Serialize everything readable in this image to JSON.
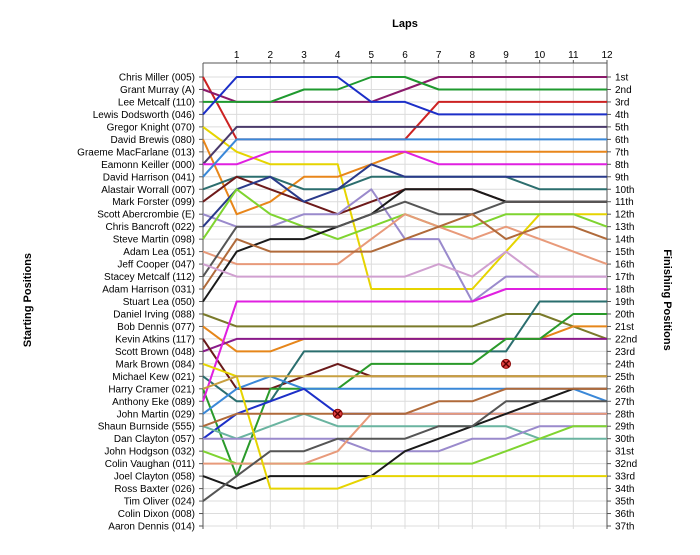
{
  "chart_data": {
    "type": "line",
    "title": "Laps",
    "ylabel_left": "Starting Positions",
    "ylabel_right": "Finishing Positions",
    "x": [
      0,
      1,
      2,
      3,
      4,
      5,
      6,
      7,
      8,
      9,
      10,
      11,
      12
    ],
    "x_tick_labels": [
      "1",
      "2",
      "3",
      "4",
      "5",
      "6",
      "7",
      "8",
      "9",
      "10",
      "11",
      "12"
    ],
    "drivers": [
      "Chris Miller (005)",
      "Grant Murray (A)",
      "Lee Metcalf (110)",
      "Lewis Dodsworth (046)",
      "Gregor Knight (070)",
      "David Brewis (080)",
      "Graeme MacFarlane (013)",
      "Eamonn Keiller (000)",
      "David Harrison (041)",
      "Alastair Worrall (007)",
      "Mark Forster (099)",
      "Scott Abercrombie (E)",
      "Chris Bancroft (022)",
      "Steve Martin (098)",
      "Adam Lea (051)",
      "Jeff Cooper (047)",
      "Stacey Metcalf (112)",
      "Adam Harrison (031)",
      "Stuart Lea (050)",
      "Daniel Irving (088)",
      "Bob Dennis (077)",
      "Kevin Atkins (117)",
      "Scott Brown (048)",
      "Mark Brown (084)",
      "Michael Kew (021)",
      "Harry Cramer (021)",
      "Anthony Eke (089)",
      "John Martin (029)",
      "Shaun Burnside (555)",
      "Dan Clayton (057)",
      "John Hodgson (032)",
      "Colin Vaughan (011)",
      "Joel Clayton (058)",
      "Ross Baxter (026)",
      "Tim Oliver (024)",
      "Colin Dixon (008)",
      "Aaron Dennis (014)"
    ],
    "finishing_labels": [
      "1st",
      "2nd",
      "3rd",
      "4th",
      "5th",
      "6th",
      "7th",
      "8th",
      "9th",
      "10th",
      "11th",
      "12th",
      "13th",
      "14th",
      "15th",
      "16th",
      "17th",
      "18th",
      "19th",
      "20th",
      "21st",
      "22nd",
      "23rd",
      "24th",
      "25th",
      "26th",
      "27th",
      "28th",
      "29th",
      "30th",
      "31st",
      "32nd",
      "33rd",
      "34th",
      "35th",
      "36th",
      "37th"
    ],
    "y_range": [
      1,
      37
    ],
    "grid": true,
    "series": [
      {
        "color": "#cc2222",
        "positions": [
          1,
          6,
          6,
          6,
          6,
          6,
          6,
          3,
          3,
          3,
          3,
          3,
          3
        ]
      },
      {
        "color": "#8a1a6a",
        "positions": [
          2,
          3,
          3,
          3,
          3,
          3,
          2,
          1,
          1,
          1,
          1,
          1,
          1
        ]
      },
      {
        "color": "#1f9a2f",
        "positions": [
          3,
          3,
          3,
          2,
          2,
          1,
          1,
          2,
          2,
          2,
          2,
          2,
          2
        ]
      },
      {
        "color": "#1c2fc8",
        "positions": [
          4,
          1,
          1,
          1,
          1,
          3,
          3,
          4,
          4,
          4,
          4,
          4,
          4
        ]
      },
      {
        "color": "#e6d400",
        "positions": [
          5,
          7,
          8,
          8,
          8,
          18,
          18,
          18,
          18,
          15,
          12,
          12,
          12
        ]
      },
      {
        "color": "#e8861a",
        "positions": [
          6,
          12,
          11,
          9,
          9,
          8,
          7,
          7,
          7,
          7,
          7,
          7,
          7
        ]
      },
      {
        "color": "#4a3a6a",
        "positions": [
          8,
          5,
          5,
          5,
          5,
          5,
          5,
          5,
          5,
          5,
          5,
          5,
          5
        ]
      },
      {
        "color": "#e020e0",
        "positions": [
          8,
          8,
          7,
          7,
          7,
          7,
          7,
          8,
          8,
          8,
          8,
          8,
          8
        ]
      },
      {
        "color": "#3a88d8",
        "positions": [
          9,
          6,
          6,
          6,
          6,
          6,
          6,
          6,
          6,
          6,
          6,
          6,
          6
        ]
      },
      {
        "color": "#2c6e6e",
        "positions": [
          10,
          9,
          9,
          10,
          10,
          9,
          9,
          9,
          9,
          9,
          10,
          10,
          10
        ]
      },
      {
        "color": "#6e1a1a",
        "positions": [
          11,
          9,
          10,
          11,
          12,
          11,
          10,
          10,
          10,
          11,
          11,
          11,
          11
        ]
      },
      {
        "color": "#9a8acc",
        "positions": [
          12,
          13,
          13,
          12,
          12,
          10,
          14,
          14,
          19,
          17,
          17,
          17,
          17
        ]
      },
      {
        "color": "#2a3a8a",
        "positions": [
          13,
          10,
          9,
          11,
          10,
          8,
          9,
          9,
          9,
          9,
          9,
          9,
          9
        ]
      },
      {
        "color": "#7fd430",
        "positions": [
          14,
          10,
          12,
          13,
          14,
          13,
          12,
          13,
          13,
          12,
          12,
          12,
          13
        ]
      },
      {
        "color": "#e89a7a",
        "positions": [
          15,
          16,
          16,
          16,
          16,
          14,
          12,
          13,
          14,
          13,
          14,
          15,
          16
        ]
      },
      {
        "color": "#1a1a1a",
        "positions": [
          19,
          15,
          14,
          14,
          13,
          12,
          10,
          10,
          10,
          11,
          11,
          11,
          11
        ]
      },
      {
        "color": "#555555",
        "positions": [
          17,
          13,
          13,
          13,
          13,
          12,
          11,
          12,
          12,
          11,
          11,
          11,
          11
        ]
      },
      {
        "color": "#b06a3a",
        "positions": [
          18,
          14,
          15,
          15,
          15,
          15,
          14,
          13,
          12,
          14,
          13,
          13,
          14
        ]
      },
      {
        "color": "#d0a0d0",
        "positions": [
          16,
          17,
          17,
          17,
          17,
          17,
          17,
          16,
          17,
          15,
          17,
          17,
          17
        ]
      },
      {
        "color": "#7a7a2a",
        "positions": [
          20,
          21,
          21,
          21,
          21,
          21,
          21,
          21,
          21,
          20,
          20,
          21,
          22
        ]
      },
      {
        "color": "#e6861a",
        "positions": [
          21,
          23,
          23,
          22,
          22,
          22,
          22,
          22,
          22,
          22,
          22,
          21,
          21
        ]
      },
      {
        "color": "#8a1a8a",
        "positions": [
          23,
          22,
          22,
          22,
          22,
          22,
          22,
          22,
          22,
          22,
          22,
          22,
          22
        ]
      },
      {
        "color": "#6a1a1a",
        "positions": [
          22,
          26,
          26,
          25,
          24,
          25,
          25,
          25,
          25,
          25,
          25,
          25,
          25
        ]
      },
      {
        "color": "#2a6e6e",
        "positions": [
          25,
          27,
          27,
          23,
          23,
          23,
          23,
          23,
          23,
          23,
          19,
          19,
          19
        ]
      },
      {
        "color": "#2a9a2a",
        "positions": [
          26,
          33,
          26,
          26,
          26,
          24,
          24,
          24,
          24,
          22,
          22,
          20,
          20
        ]
      },
      {
        "color": "#e020e0",
        "positions": [
          27,
          19,
          19,
          19,
          19,
          19,
          19,
          19,
          19,
          18,
          18,
          18,
          18
        ]
      },
      {
        "color": "#3a88d8",
        "positions": [
          28,
          26,
          25,
          26,
          26,
          26,
          26,
          26,
          26,
          26,
          26,
          26,
          27
        ]
      },
      {
        "color": "#1c2fc8",
        "positions": [
          30,
          28,
          27,
          26,
          28,
          28,
          28,
          28,
          28,
          28,
          28,
          28,
          28
        ]
      },
      {
        "color": "#6ab4a0",
        "positions": [
          29,
          30,
          29,
          28,
          29,
          29,
          29,
          29,
          29,
          29,
          30,
          30,
          30
        ]
      },
      {
        "color": "#9a8acc",
        "positions": [
          30,
          30,
          30,
          30,
          30,
          31,
          31,
          31,
          30,
          30,
          29,
          29,
          29
        ]
      },
      {
        "color": "#7fd430",
        "positions": [
          31,
          32,
          32,
          32,
          32,
          32,
          32,
          32,
          32,
          31,
          30,
          29,
          29
        ]
      },
      {
        "color": "#e89a7a",
        "positions": [
          32,
          32,
          32,
          32,
          31,
          28,
          28,
          28,
          28,
          28,
          28,
          28,
          28
        ]
      },
      {
        "color": "#1a1a1a",
        "positions": [
          33,
          34,
          33,
          33,
          33,
          33,
          31,
          30,
          29,
          28,
          27,
          26,
          26
        ]
      },
      {
        "color": "#e6d400",
        "positions": [
          24,
          25,
          34,
          34,
          34,
          33,
          33,
          33,
          33,
          33,
          33,
          33,
          33
        ]
      },
      {
        "color": "#555555",
        "positions": [
          35,
          33,
          31,
          31,
          30,
          30,
          30,
          29,
          29,
          27,
          27,
          27,
          27
        ]
      },
      {
        "color": "#b06a3a",
        "positions": [
          29,
          28,
          28,
          28,
          28,
          28,
          28,
          27,
          27,
          26,
          26,
          26,
          26
        ]
      },
      {
        "color": "#c8a040",
        "positions": [
          26,
          25,
          25,
          25,
          25,
          25,
          25,
          25,
          25,
          25,
          25,
          25,
          25
        ]
      }
    ],
    "retirements": [
      {
        "lap": 4,
        "position": 28
      },
      {
        "lap": 9,
        "position": 24
      }
    ]
  }
}
